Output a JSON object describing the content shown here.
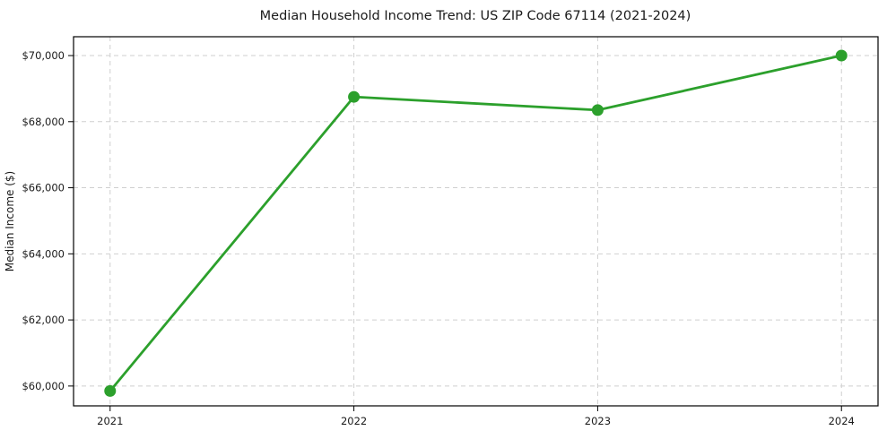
{
  "chart_data": {
    "type": "line",
    "title": "Median Household Income Trend: US ZIP Code 67114 (2021-2024)",
    "xlabel": "",
    "ylabel": "Median Income ($)",
    "x": [
      2021,
      2022,
      2023,
      2024
    ],
    "x_tick_labels": [
      "2021",
      "2022",
      "2023",
      "2024"
    ],
    "series": [
      {
        "name": "Median Household Income",
        "values": [
          59850,
          68750,
          68350,
          70000
        ]
      }
    ],
    "y_ticks": [
      60000,
      62000,
      64000,
      66000,
      68000,
      70000
    ],
    "y_tick_labels": [
      "$60,000",
      "$62,000",
      "$64,000",
      "$66,000",
      "$68,000",
      "$70,000"
    ],
    "xlim": [
      2020.85,
      2024.15
    ],
    "ylim": [
      59400,
      70570
    ],
    "grid": true,
    "legend": false,
    "line_color": "#2ca02c",
    "marker": "circle",
    "marker_size": 6.5,
    "background_color": "#ffffff",
    "grid_color": "#cfcfcf",
    "axis_color": "#000000"
  }
}
